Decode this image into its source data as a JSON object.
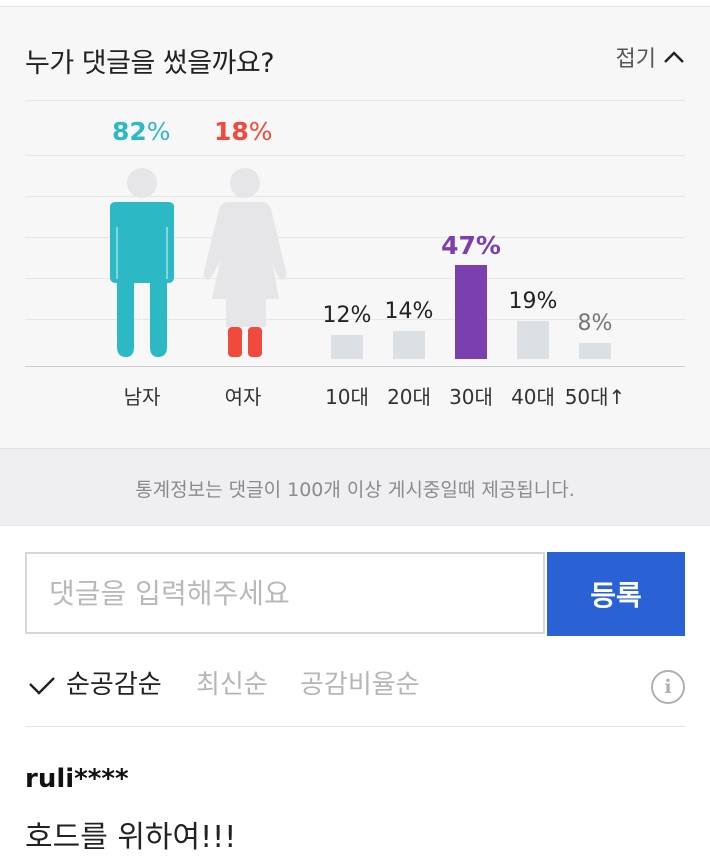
{
  "stats": {
    "title": "누가 댓글을 썼을까요?",
    "fold_label": "접기",
    "gender": [
      {
        "label": "남자",
        "value": "82",
        "color": "#2db8c5"
      },
      {
        "label": "여자",
        "value": "18",
        "color": "#ef4a3b"
      }
    ],
    "age_chart": {
      "type": "bar",
      "categories": [
        "10대",
        "20대",
        "30대",
        "40대",
        "50대↑"
      ],
      "values": [
        12,
        14,
        47,
        19,
        8
      ],
      "labels": [
        "12%",
        "14%",
        "47%",
        "19%",
        "8%"
      ],
      "highlight_index": 2,
      "highlight_color": "#7b3fb0",
      "bar_color": "#dcdfe3"
    },
    "percent_symbol": "%"
  },
  "notice": {
    "text": "통계정보는 댓글이 100개 이상 게시중일때 제공됩니다."
  },
  "comment_form": {
    "placeholder": "댓글을 입력해주세요",
    "submit_label": "등록"
  },
  "sort": {
    "options": [
      "순공감순",
      "최신순",
      "공감비율순"
    ],
    "active_index": 0
  },
  "comments": [
    {
      "author": "ruli****",
      "text": "호드를 위하여!!!"
    }
  ]
}
